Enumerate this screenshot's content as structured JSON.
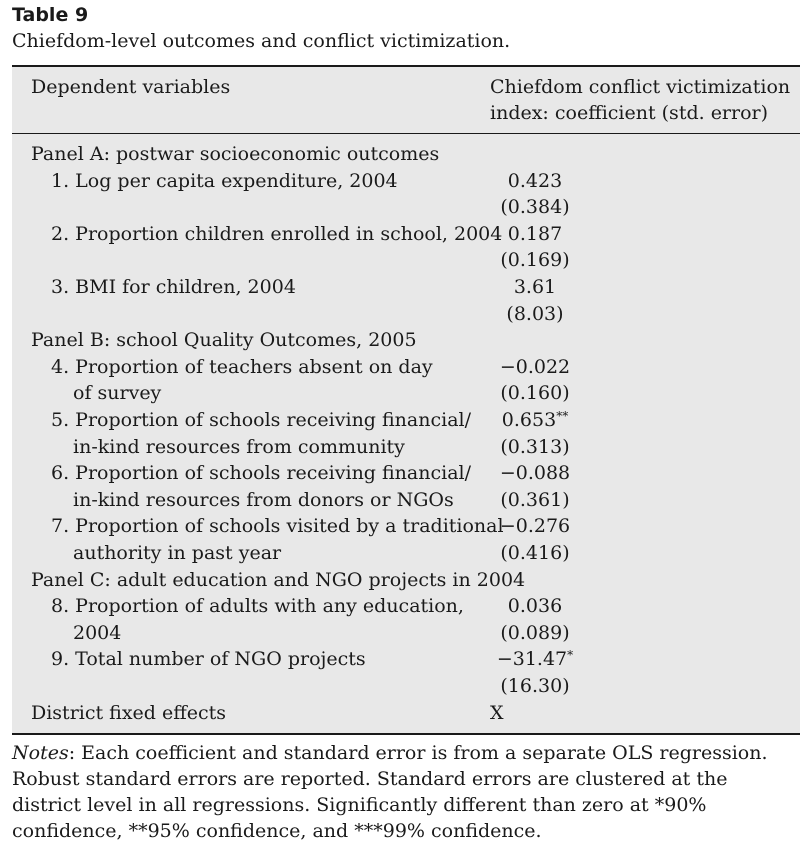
{
  "table_label": "Table 9",
  "caption": "Chiefdom-level outcomes and conflict victimization.",
  "header": {
    "left": "Dependent variables",
    "right_line1": "Chiefdom conflict victimization",
    "right_line2": "index: coefficient (std. error)"
  },
  "panels": [
    {
      "title": "Panel A: postwar socioeconomic outcomes",
      "rows": [
        {
          "lines": [
            "1. Log per capita expenditure, 2004"
          ],
          "coef": "0.423",
          "stars": "",
          "se": "(0.384)"
        },
        {
          "lines": [
            "2. Proportion children enrolled in school, 2004"
          ],
          "coef": "0.187",
          "stars": "",
          "se": "(0.169)"
        },
        {
          "lines": [
            "3. BMI for children, 2004"
          ],
          "coef": "3.61",
          "stars": "",
          "se": "(8.03)"
        }
      ]
    },
    {
      "title": "Panel B: school Quality Outcomes, 2005",
      "rows": [
        {
          "lines": [
            "4. Proportion of teachers absent on day",
            "of survey"
          ],
          "coef": "−0.022",
          "stars": "",
          "se": "(0.160)"
        },
        {
          "lines": [
            "5. Proportion of schools receiving financial/",
            "in-kind resources from community"
          ],
          "coef": "0.653",
          "stars": "**",
          "se": "(0.313)"
        },
        {
          "lines": [
            "6. Proportion of schools receiving financial/",
            "in-kind resources from donors or NGOs"
          ],
          "coef": "−0.088",
          "stars": "",
          "se": "(0.361)"
        },
        {
          "lines": [
            "7. Proportion of schools visited by a traditional",
            "authority in past year"
          ],
          "coef": "−0.276",
          "stars": "",
          "se": "(0.416)"
        }
      ]
    },
    {
      "title": "Panel C: adult education and NGO projects in 2004",
      "rows": [
        {
          "lines": [
            "8. Proportion of adults with any education,",
            "2004"
          ],
          "coef": "0.036",
          "stars": "",
          "se": "(0.089)"
        },
        {
          "lines": [
            "9. Total number of NGO projects"
          ],
          "coef": "−31.47",
          "stars": "*",
          "se": "(16.30)"
        }
      ]
    }
  ],
  "fixed_effects": {
    "label": "District fixed effects",
    "value": "X"
  },
  "notes": {
    "lead": "Notes",
    "text": ": Each coefficient and standard error is from a separate OLS regression. Robust standard errors are reported. Standard errors are clustered at the district level in all regressions. Significantly different than zero at *90% confidence, **95% confidence, and ***99% confidence."
  },
  "colors": {
    "table_background": "#e8e8e8",
    "rule": "#1a1a1a",
    "text": "#1a1a1a"
  }
}
